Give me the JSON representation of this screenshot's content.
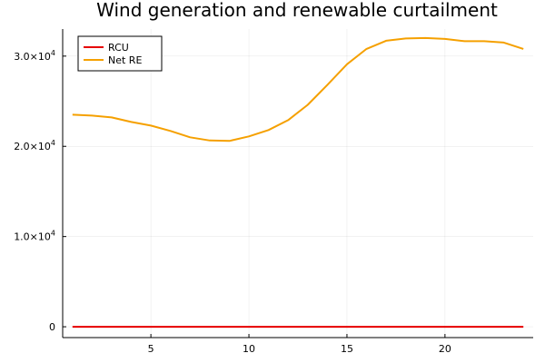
{
  "chart_data": {
    "type": "line",
    "title": "Wind generation and renewable curtailment",
    "xlabel": "",
    "ylabel": "",
    "xlim": [
      0.5,
      24.5
    ],
    "ylim": [
      -1200,
      33000
    ],
    "grid": true,
    "legend_position": "top-left",
    "x_ticks": [
      5,
      10,
      15,
      20
    ],
    "x_tick_labels": [
      "5",
      "10",
      "15",
      "20"
    ],
    "y_ticks": [
      0,
      10000,
      20000,
      30000
    ],
    "y_tick_labels": [
      {
        "mantissa": "0",
        "exponent": ""
      },
      {
        "mantissa": "1.0×10",
        "exponent": "4"
      },
      {
        "mantissa": "2.0×10",
        "exponent": "4"
      },
      {
        "mantissa": "3.0×10",
        "exponent": "4"
      }
    ],
    "x": [
      1,
      2,
      3,
      4,
      5,
      6,
      7,
      8,
      9,
      10,
      11,
      12,
      13,
      14,
      15,
      16,
      17,
      18,
      19,
      20,
      21,
      22,
      23,
      24
    ],
    "series": [
      {
        "name": "RCU",
        "color": "#e60000",
        "values": [
          0,
          0,
          0,
          0,
          0,
          0,
          0,
          0,
          0,
          0,
          0,
          0,
          0,
          0,
          0,
          0,
          0,
          0,
          0,
          0,
          0,
          0,
          0,
          0
        ]
      },
      {
        "name": "Net RE",
        "color": "#f5a000",
        "values": [
          23500,
          23400,
          23200,
          22700,
          22300,
          21700,
          21000,
          20650,
          20600,
          21100,
          21800,
          22900,
          24600,
          26800,
          29100,
          30800,
          31700,
          31950,
          32000,
          31900,
          31650,
          31650,
          31500,
          30800
        ]
      }
    ]
  }
}
